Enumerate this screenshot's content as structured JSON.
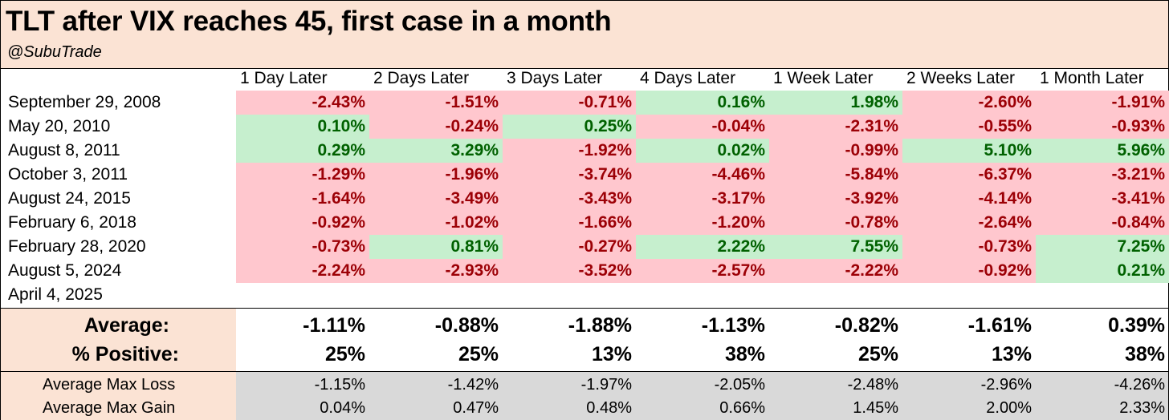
{
  "title": "TLT after VIX reaches 45, first case in a month",
  "subtitle": "@SubuTrade",
  "chart_data": {
    "type": "table",
    "columns": [
      "1 Day Later",
      "2 Days Later",
      "3 Days Later",
      "4 Days Later",
      "1 Week Later",
      "2 Weeks Later",
      "1 Month Later"
    ],
    "rows": [
      {
        "date": "September 29, 2008",
        "values": [
          "-2.43%",
          "-1.51%",
          "-0.71%",
          "0.16%",
          "1.98%",
          "-2.60%",
          "-1.91%"
        ]
      },
      {
        "date": "May 20, 2010",
        "values": [
          "0.10%",
          "-0.24%",
          "0.25%",
          "-0.04%",
          "-2.31%",
          "-0.55%",
          "-0.93%"
        ]
      },
      {
        "date": "August 8, 2011",
        "values": [
          "0.29%",
          "3.29%",
          "-1.92%",
          "0.02%",
          "-0.99%",
          "5.10%",
          "5.96%"
        ]
      },
      {
        "date": "October 3, 2011",
        "values": [
          "-1.29%",
          "-1.96%",
          "-3.74%",
          "-4.46%",
          "-5.84%",
          "-6.37%",
          "-3.21%"
        ]
      },
      {
        "date": "August 24, 2015",
        "values": [
          "-1.64%",
          "-3.49%",
          "-3.43%",
          "-3.17%",
          "-3.92%",
          "-4.14%",
          "-3.41%"
        ]
      },
      {
        "date": "February 6, 2018",
        "values": [
          "-0.92%",
          "-1.02%",
          "-1.66%",
          "-1.20%",
          "-0.78%",
          "-2.64%",
          "-0.84%"
        ]
      },
      {
        "date": "February 28, 2020",
        "values": [
          "-0.73%",
          "0.81%",
          "-0.27%",
          "2.22%",
          "7.55%",
          "-0.73%",
          "7.25%"
        ]
      },
      {
        "date": "August 5, 2024",
        "values": [
          "-2.24%",
          "-2.93%",
          "-3.52%",
          "-2.57%",
          "-2.22%",
          "-0.92%",
          "0.21%"
        ]
      },
      {
        "date": "April 4, 2025",
        "values": [
          "",
          "",
          "",
          "",
          "",
          "",
          ""
        ]
      }
    ],
    "summary": {
      "average_label": "Average:",
      "average": [
        "-1.11%",
        "-0.88%",
        "-1.88%",
        "-1.13%",
        "-0.82%",
        "-1.61%",
        "0.39%"
      ],
      "positive_label": "% Positive:",
      "positive": [
        "25%",
        "25%",
        "13%",
        "38%",
        "25%",
        "13%",
        "38%"
      ]
    },
    "max_stats": {
      "max_loss_label": "Average Max Loss",
      "max_loss": [
        "-1.15%",
        "-1.42%",
        "-1.97%",
        "-2.05%",
        "-2.48%",
        "-2.96%",
        "-4.26%"
      ],
      "max_gain_label": "Average Max Gain",
      "max_gain": [
        "0.04%",
        "0.47%",
        "0.48%",
        "0.66%",
        "1.45%",
        "2.00%",
        "2.33%"
      ]
    }
  },
  "colors": {
    "header_bg": "#fbe3d4",
    "neg_bg": "#ffc7ce",
    "neg_text": "#9c0006",
    "pos_bg": "#c6efce",
    "pos_text": "#006100",
    "max_bg": "#d9d9d9"
  }
}
